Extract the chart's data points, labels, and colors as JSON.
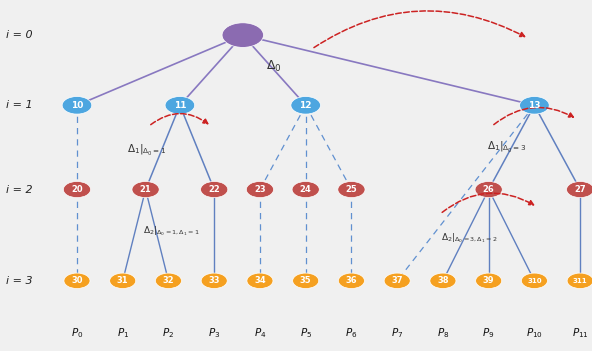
{
  "bg_color": "#f0f0f0",
  "root_color": "#8b6bb1",
  "i1_color": "#4da6e0",
  "i2_color": "#c0504d",
  "i3_color": "#f5a020",
  "solid_edge_color": "#6080c0",
  "root_edge_color": "#8878c0",
  "dashed_edge_color": "#6090d0",
  "arrow_color": "#cc2222",
  "level_labels": [
    "i = 0",
    "i = 1",
    "i = 2",
    "i = 3"
  ],
  "p_labels": [
    "P_0",
    "P_1",
    "P_2",
    "P_3",
    "P_4",
    "P_5",
    "P_6",
    "P_7",
    "P_8",
    "P_9",
    "P_{10}",
    "P_{11}"
  ]
}
